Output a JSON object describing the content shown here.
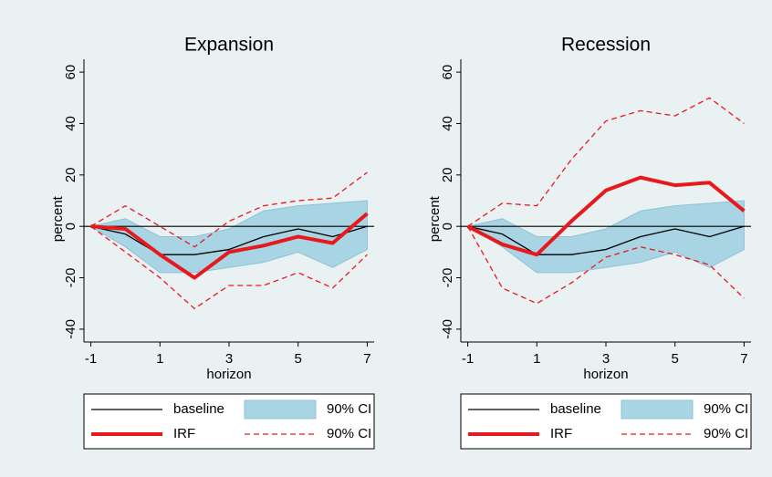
{
  "chart_data": [
    {
      "type": "line",
      "title": "Expansion",
      "x_label": "horizon",
      "y_label": "percent",
      "x": [
        -1,
        0,
        1,
        2,
        3,
        4,
        5,
        6,
        7
      ],
      "xlim": [
        -1.2,
        7.2
      ],
      "xticks": [
        -1,
        1,
        3,
        5,
        7
      ],
      "ylim": [
        -45,
        65
      ],
      "yticks": [
        -40,
        -20,
        0,
        20,
        40,
        60
      ],
      "reference_line": 0,
      "series": [
        {
          "name": "baseline",
          "kind": "line",
          "color": "#000000",
          "values": [
            0,
            -3,
            -11,
            -11,
            -9,
            -4,
            -1,
            -4,
            0
          ]
        },
        {
          "name": "90% CI",
          "kind": "band",
          "color": "#a8d4e4",
          "upper": [
            0,
            3,
            -4,
            -4,
            -1,
            6,
            8,
            9,
            10
          ],
          "lower": [
            0,
            -8,
            -18,
            -18,
            -16,
            -14,
            -10,
            -16,
            -9
          ]
        },
        {
          "name": "IRF",
          "kind": "thick",
          "color": "#e8191c",
          "values": [
            0,
            -1,
            -11,
            -20,
            -10,
            -7.5,
            -4,
            -6.5,
            5
          ]
        },
        {
          "name": "90% CI",
          "kind": "dashed",
          "color": "#e8191c",
          "upper": [
            0,
            8,
            0,
            -8,
            2,
            8,
            10,
            11,
            21
          ],
          "lower": [
            0,
            -10,
            -20,
            -32,
            -23,
            -23,
            -18,
            -24,
            -11
          ]
        }
      ]
    },
    {
      "type": "line",
      "title": "Recession",
      "x_label": "horizon",
      "y_label": "percent",
      "x": [
        -1,
        0,
        1,
        2,
        3,
        4,
        5,
        6,
        7
      ],
      "xlim": [
        -1.2,
        7.2
      ],
      "xticks": [
        -1,
        1,
        3,
        5,
        7
      ],
      "ylim": [
        -45,
        65
      ],
      "yticks": [
        -40,
        -20,
        0,
        20,
        40,
        60
      ],
      "reference_line": 0,
      "series": [
        {
          "name": "baseline",
          "kind": "line",
          "color": "#000000",
          "values": [
            0,
            -3,
            -11,
            -11,
            -9,
            -4,
            -1,
            -4,
            0
          ]
        },
        {
          "name": "90% CI",
          "kind": "band",
          "color": "#a8d4e4",
          "upper": [
            0,
            3,
            -4,
            -4,
            -1,
            6,
            8,
            9,
            10
          ],
          "lower": [
            0,
            -8,
            -18,
            -18,
            -16,
            -14,
            -10,
            -16,
            -9
          ]
        },
        {
          "name": "IRF",
          "kind": "thick",
          "color": "#e8191c",
          "values": [
            0,
            -7,
            -11,
            2,
            14,
            19,
            16,
            17,
            6
          ]
        },
        {
          "name": "90% CI",
          "kind": "dashed",
          "color": "#e8191c",
          "upper": [
            0,
            9,
            8,
            26,
            41,
            45,
            43,
            50,
            40
          ],
          "lower": [
            0,
            -24,
            -30,
            -22,
            -12,
            -8,
            -11,
            -15,
            -28
          ]
        }
      ]
    }
  ]
}
